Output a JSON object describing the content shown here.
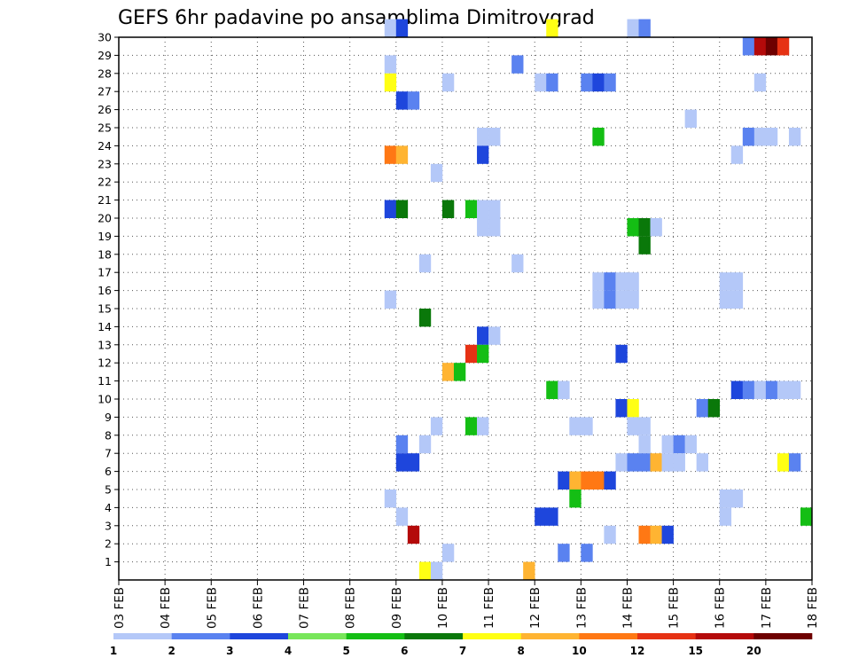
{
  "chart_data": {
    "type": "heatmap",
    "title": "GEFS 6hr padavine po ansamblima Dimitrovgrad",
    "xlabel": "",
    "ylabel": "",
    "x_ticks": [
      "03 FEB",
      "04 FEB",
      "05 FEB",
      "06 FEB",
      "07 FEB",
      "08 FEB",
      "09 FEB",
      "10 FEB",
      "11 FEB",
      "12 FEB",
      "13 FEB",
      "14 FEB",
      "15 FEB",
      "16 FEB",
      "17 FEB",
      "18 FEB"
    ],
    "y_ticks": [
      "1",
      "2",
      "3",
      "4",
      "5",
      "6",
      "7",
      "8",
      "9",
      "10",
      "11",
      "12",
      "13",
      "14",
      "15",
      "16",
      "17",
      "18",
      "19",
      "20",
      "21",
      "22",
      "23",
      "24",
      "25",
      "26",
      "27",
      "28",
      "29",
      "30"
    ],
    "xlim": [
      "03 FEB",
      "18 FEB"
    ],
    "ylim": [
      0,
      30
    ],
    "grid": true,
    "legend_placement": "bottom",
    "legend": {
      "labels": [
        "1",
        "2",
        "3",
        "4",
        "5",
        "6",
        "7",
        "8",
        "10",
        "12",
        "15",
        "20"
      ],
      "colors": [
        "#b4c8f8",
        "#5a82f0",
        "#1e46dc",
        "#78e65a",
        "#14be14",
        "#0a780a",
        "#ffff14",
        "#ffb432",
        "#ff7814",
        "#e63214",
        "#b40a0a",
        "#6e0000"
      ]
    },
    "cells": [
      {
        "t": "08 FEB 18Z",
        "m": 30,
        "v": 1
      },
      {
        "t": "09 FEB 00Z",
        "m": 30,
        "v": 3
      },
      {
        "t": "12 FEB 06Z",
        "m": 30,
        "v": 7
      },
      {
        "t": "14 FEB 00Z",
        "m": 30,
        "v": 1
      },
      {
        "t": "14 FEB 06Z",
        "m": 30,
        "v": 2
      },
      {
        "t": "16 FEB 12Z",
        "m": 29,
        "v": 2
      },
      {
        "t": "16 FEB 18Z",
        "m": 29,
        "v": 15
      },
      {
        "t": "17 FEB 00Z",
        "m": 29,
        "v": 20
      },
      {
        "t": "17 FEB 06Z",
        "m": 29,
        "v": 12
      },
      {
        "t": "08 FEB 18Z",
        "m": 28,
        "v": 1
      },
      {
        "t": "11 FEB 12Z",
        "m": 28,
        "v": 2
      },
      {
        "t": "08 FEB 18Z",
        "m": 27,
        "v": 7
      },
      {
        "t": "10 FEB 00Z",
        "m": 27,
        "v": 1
      },
      {
        "t": "12 FEB 00Z",
        "m": 27,
        "v": 1
      },
      {
        "t": "12 FEB 06Z",
        "m": 27,
        "v": 2
      },
      {
        "t": "13 FEB 00Z",
        "m": 27,
        "v": 2
      },
      {
        "t": "13 FEB 06Z",
        "m": 27,
        "v": 3
      },
      {
        "t": "13 FEB 12Z",
        "m": 27,
        "v": 2
      },
      {
        "t": "16 FEB 18Z",
        "m": 27,
        "v": 1
      },
      {
        "t": "09 FEB 00Z",
        "m": 26,
        "v": 3
      },
      {
        "t": "09 FEB 06Z",
        "m": 26,
        "v": 2
      },
      {
        "t": "15 FEB 06Z",
        "m": 25,
        "v": 1
      },
      {
        "t": "10 FEB 18Z",
        "m": 24,
        "v": 1
      },
      {
        "t": "11 FEB 00Z",
        "m": 24,
        "v": 1
      },
      {
        "t": "13 FEB 06Z",
        "m": 24,
        "v": 5
      },
      {
        "t": "16 FEB 12Z",
        "m": 24,
        "v": 2
      },
      {
        "t": "16 FEB 18Z",
        "m": 24,
        "v": 1
      },
      {
        "t": "17 FEB 00Z",
        "m": 24,
        "v": 1
      },
      {
        "t": "17 FEB 12Z",
        "m": 24,
        "v": 1
      },
      {
        "t": "08 FEB 18Z",
        "m": 23,
        "v": 10
      },
      {
        "t": "09 FEB 00Z",
        "m": 23,
        "v": 8
      },
      {
        "t": "10 FEB 18Z",
        "m": 23,
        "v": 3
      },
      {
        "t": "16 FEB 06Z",
        "m": 23,
        "v": 1
      },
      {
        "t": "09 FEB 18Z",
        "m": 22,
        "v": 1
      },
      {
        "t": "08 FEB 18Z",
        "m": 20,
        "v": 3
      },
      {
        "t": "09 FEB 00Z",
        "m": 20,
        "v": 6
      },
      {
        "t": "10 FEB 00Z",
        "m": 20,
        "v": 6
      },
      {
        "t": "10 FEB 12Z",
        "m": 20,
        "v": 5
      },
      {
        "t": "10 FEB 18Z",
        "m": 20,
        "v": 1
      },
      {
        "t": "11 FEB 00Z",
        "m": 20,
        "v": 1
      },
      {
        "t": "10 FEB 18Z",
        "m": 19,
        "v": 1
      },
      {
        "t": "11 FEB 00Z",
        "m": 19,
        "v": 1
      },
      {
        "t": "14 FEB 00Z",
        "m": 19,
        "v": 5
      },
      {
        "t": "14 FEB 06Z",
        "m": 19,
        "v": 6
      },
      {
        "t": "14 FEB 12Z",
        "m": 19,
        "v": 1
      },
      {
        "t": "14 FEB 06Z",
        "m": 18,
        "v": 6
      },
      {
        "t": "09 FEB 12Z",
        "m": 17,
        "v": 1
      },
      {
        "t": "11 FEB 12Z",
        "m": 17,
        "v": 1
      },
      {
        "t": "13 FEB 06Z",
        "m": 16,
        "v": 1
      },
      {
        "t": "13 FEB 12Z",
        "m": 16,
        "v": 2
      },
      {
        "t": "13 FEB 18Z",
        "m": 16,
        "v": 1
      },
      {
        "t": "14 FEB 00Z",
        "m": 16,
        "v": 1
      },
      {
        "t": "16 FEB 00Z",
        "m": 16,
        "v": 1
      },
      {
        "t": "16 FEB 06Z",
        "m": 16,
        "v": 1
      },
      {
        "t": "08 FEB 18Z",
        "m": 15,
        "v": 1
      },
      {
        "t": "13 FEB 06Z",
        "m": 15,
        "v": 1
      },
      {
        "t": "13 FEB 12Z",
        "m": 15,
        "v": 2
      },
      {
        "t": "13 FEB 18Z",
        "m": 15,
        "v": 1
      },
      {
        "t": "14 FEB 00Z",
        "m": 15,
        "v": 1
      },
      {
        "t": "16 FEB 00Z",
        "m": 15,
        "v": 1
      },
      {
        "t": "16 FEB 06Z",
        "m": 15,
        "v": 1
      },
      {
        "t": "09 FEB 12Z",
        "m": 14,
        "v": 6
      },
      {
        "t": "10 FEB 18Z",
        "m": 13,
        "v": 3
      },
      {
        "t": "11 FEB 00Z",
        "m": 13,
        "v": 1
      },
      {
        "t": "10 FEB 12Z",
        "m": 12,
        "v": 12
      },
      {
        "t": "10 FEB 18Z",
        "m": 12,
        "v": 5
      },
      {
        "t": "13 FEB 18Z",
        "m": 12,
        "v": 3
      },
      {
        "t": "10 FEB 00Z",
        "m": 11,
        "v": 8
      },
      {
        "t": "10 FEB 06Z",
        "m": 11,
        "v": 5
      },
      {
        "t": "12 FEB 06Z",
        "m": 10,
        "v": 5
      },
      {
        "t": "12 FEB 12Z",
        "m": 10,
        "v": 1
      },
      {
        "t": "16 FEB 06Z",
        "m": 10,
        "v": 3
      },
      {
        "t": "16 FEB 12Z",
        "m": 10,
        "v": 2
      },
      {
        "t": "16 FEB 18Z",
        "m": 10,
        "v": 1
      },
      {
        "t": "17 FEB 00Z",
        "m": 10,
        "v": 2
      },
      {
        "t": "17 FEB 06Z",
        "m": 10,
        "v": 1
      },
      {
        "t": "17 FEB 12Z",
        "m": 10,
        "v": 1
      },
      {
        "t": "13 FEB 18Z",
        "m": 9,
        "v": 3
      },
      {
        "t": "14 FEB 00Z",
        "m": 9,
        "v": 7
      },
      {
        "t": "15 FEB 12Z",
        "m": 9,
        "v": 2
      },
      {
        "t": "15 FEB 18Z",
        "m": 9,
        "v": 6
      },
      {
        "t": "09 FEB 18Z",
        "m": 8,
        "v": 1
      },
      {
        "t": "10 FEB 12Z",
        "m": 8,
        "v": 5
      },
      {
        "t": "10 FEB 18Z",
        "m": 8,
        "v": 1
      },
      {
        "t": "12 FEB 18Z",
        "m": 8,
        "v": 1
      },
      {
        "t": "13 FEB 00Z",
        "m": 8,
        "v": 1
      },
      {
        "t": "14 FEB 00Z",
        "m": 8,
        "v": 1
      },
      {
        "t": "14 FEB 06Z",
        "m": 8,
        "v": 1
      },
      {
        "t": "09 FEB 00Z",
        "m": 7,
        "v": 2
      },
      {
        "t": "09 FEB 12Z",
        "m": 7,
        "v": 1
      },
      {
        "t": "14 FEB 06Z",
        "m": 7,
        "v": 1
      },
      {
        "t": "14 FEB 18Z",
        "m": 7,
        "v": 1
      },
      {
        "t": "15 FEB 00Z",
        "m": 7,
        "v": 2
      },
      {
        "t": "15 FEB 06Z",
        "m": 7,
        "v": 1
      },
      {
        "t": "09 FEB 00Z",
        "m": 6,
        "v": 3
      },
      {
        "t": "09 FEB 06Z",
        "m": 6,
        "v": 3
      },
      {
        "t": "13 FEB 18Z",
        "m": 6,
        "v": 1
      },
      {
        "t": "14 FEB 00Z",
        "m": 6,
        "v": 2
      },
      {
        "t": "14 FEB 06Z",
        "m": 6,
        "v": 2
      },
      {
        "t": "14 FEB 12Z",
        "m": 6,
        "v": 8
      },
      {
        "t": "14 FEB 18Z",
        "m": 6,
        "v": 1
      },
      {
        "t": "15 FEB 00Z",
        "m": 6,
        "v": 1
      },
      {
        "t": "15 FEB 12Z",
        "m": 6,
        "v": 1
      },
      {
        "t": "17 FEB 06Z",
        "m": 6,
        "v": 7
      },
      {
        "t": "17 FEB 12Z",
        "m": 6,
        "v": 2
      },
      {
        "t": "12 FEB 12Z",
        "m": 5,
        "v": 3
      },
      {
        "t": "12 FEB 18Z",
        "m": 5,
        "v": 8
      },
      {
        "t": "13 FEB 00Z",
        "m": 5,
        "v": 10
      },
      {
        "t": "13 FEB 06Z",
        "m": 5,
        "v": 10
      },
      {
        "t": "13 FEB 12Z",
        "m": 5,
        "v": 3
      },
      {
        "t": "08 FEB 18Z",
        "m": 4,
        "v": 1
      },
      {
        "t": "12 FEB 18Z",
        "m": 4,
        "v": 5
      },
      {
        "t": "16 FEB 00Z",
        "m": 4,
        "v": 1
      },
      {
        "t": "16 FEB 06Z",
        "m": 4,
        "v": 1
      },
      {
        "t": "09 FEB 00Z",
        "m": 3,
        "v": 1
      },
      {
        "t": "12 FEB 00Z",
        "m": 3,
        "v": 3
      },
      {
        "t": "12 FEB 06Z",
        "m": 3,
        "v": 3
      },
      {
        "t": "16 FEB 00Z",
        "m": 3,
        "v": 1
      },
      {
        "t": "17 FEB 18Z",
        "m": 3,
        "v": 5
      },
      {
        "t": "09 FEB 06Z",
        "m": 2,
        "v": 15
      },
      {
        "t": "13 FEB 12Z",
        "m": 2,
        "v": 1
      },
      {
        "t": "14 FEB 06Z",
        "m": 2,
        "v": 10
      },
      {
        "t": "14 FEB 12Z",
        "m": 2,
        "v": 8
      },
      {
        "t": "14 FEB 18Z",
        "m": 2,
        "v": 3
      },
      {
        "t": "10 FEB 00Z",
        "m": 1,
        "v": 1
      },
      {
        "t": "12 FEB 12Z",
        "m": 1,
        "v": 2
      },
      {
        "t": "13 FEB 00Z",
        "m": 1,
        "v": 2
      },
      {
        "t": "09 FEB 12Z",
        "m": 0,
        "v": 7
      },
      {
        "t": "09 FEB 18Z",
        "m": 0,
        "v": 1
      },
      {
        "t": "11 FEB 18Z",
        "m": 0,
        "v": 8
      }
    ]
  }
}
